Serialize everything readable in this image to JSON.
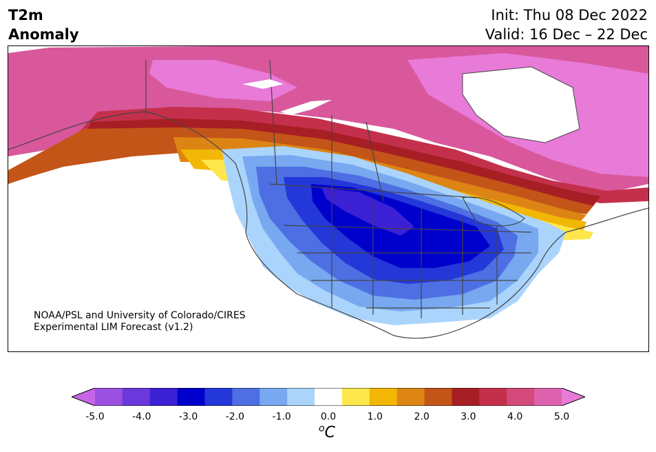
{
  "title": {
    "line1": "T2m",
    "line2": "Anomaly"
  },
  "header": {
    "init": "Init: Thu 08 Dec 2022",
    "valid": "Valid: 16 Dec – 22 Dec"
  },
  "credit": {
    "line1": "NOAA/PSL and University of Colorado/CIRES",
    "line2": "Experimental LIM Forecast (v1.2)"
  },
  "colorbar": {
    "unit_base": "C",
    "unit_sup": "o",
    "tick_labels": [
      "-5.0",
      "-4.0",
      "-3.0",
      "-2.0",
      "-1.0",
      "0.0",
      "1.0",
      "2.0",
      "3.0",
      "4.0",
      "5.0"
    ],
    "colors": [
      "#c765e6",
      "#9a4fe0",
      "#6a38dc",
      "#3b20d4",
      "#0000cc",
      "#2437d8",
      "#4d6fe3",
      "#78a8f0",
      "#aad4fb",
      "#ffffff",
      "#fde74c",
      "#f2b705",
      "#dd8514",
      "#c35518",
      "#a71f24",
      "#c4304b",
      "#d34a7b",
      "#dc62ad",
      "#e87ad8"
    ]
  },
  "map": {
    "region": "North America",
    "colors": {
      "pink": "#e87ad8",
      "magenta": "#d9589c",
      "red": "#c4304b",
      "darkred": "#a71f24",
      "brown": "#c35518",
      "orange": "#dd8514",
      "amber": "#f2b705",
      "yellow": "#fde74c",
      "pale_blue": "#aad4fb",
      "light_blue": "#78a8f0",
      "mid_blue": "#4d6fe3",
      "blue": "#2437d8",
      "deep_blue": "#0000cc",
      "indigo": "#3b20d4"
    }
  }
}
